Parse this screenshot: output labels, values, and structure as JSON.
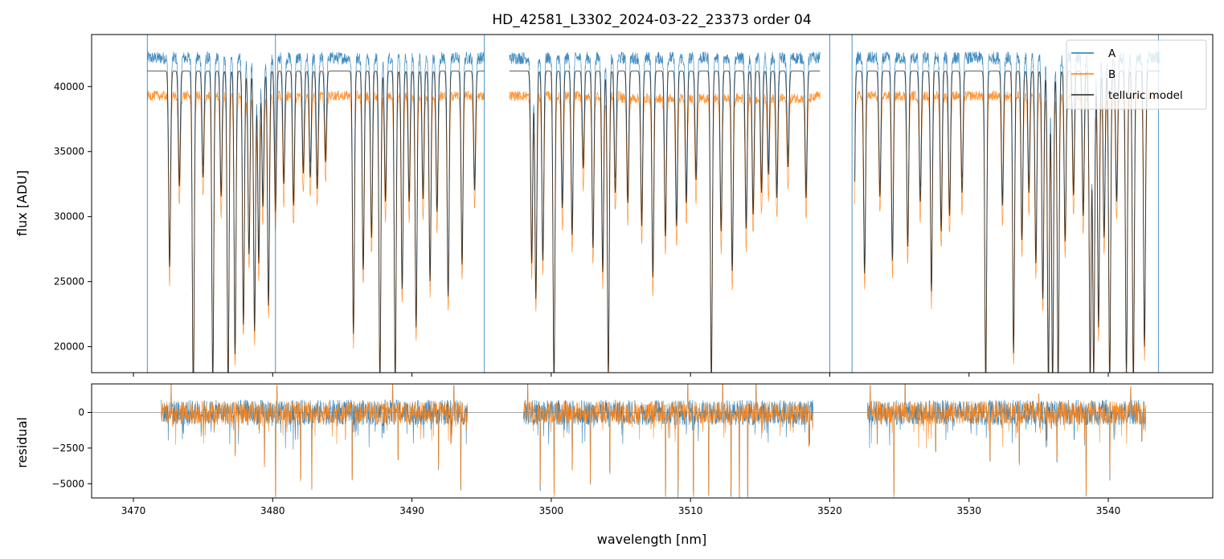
{
  "chart_data": [
    {
      "type": "line",
      "panel": "top",
      "title": "HD_42581_L3302_2024-03-22_23373  order 04",
      "ylabel": "flux [ADU]",
      "xlabel": "",
      "xlim": [
        3467.0,
        3547.5
      ],
      "ylim": [
        18000,
        44000
      ],
      "xticks": [
        3470,
        3480,
        3490,
        3500,
        3510,
        3520,
        3530,
        3540
      ],
      "xtick_labels_visible": false,
      "yticks": [
        20000,
        25000,
        30000,
        35000,
        40000
      ],
      "ytick_labels": [
        "20000",
        "25000",
        "30000",
        "35000",
        "40000"
      ],
      "legend": {
        "position": "top-right",
        "entries": [
          "A",
          "B",
          "telluric model"
        ]
      },
      "continuum_ranges": [
        [
          3471,
          3495.2
        ],
        [
          3497.0,
          3519.3
        ],
        [
          3521.8,
          3543.7
        ]
      ],
      "series": [
        {
          "name": "A",
          "color": "#1f77b4",
          "continuum": 42200,
          "x_range": [
            3471.0,
            3543.7
          ]
        },
        {
          "name": "B",
          "color": "#ff7f0e",
          "continuum": 39300,
          "x_range": [
            3471.0,
            3543.7
          ]
        },
        {
          "name": "telluric model",
          "color": "#222222",
          "continuum": 41200,
          "x_range": [
            3471.0,
            3543.7
          ]
        }
      ],
      "absorption_lines": [
        [
          3472.6,
          26500
        ],
        [
          3473.3,
          32800
        ],
        [
          3474.3,
          16000
        ],
        [
          3475.0,
          33500
        ],
        [
          3475.7,
          17500
        ],
        [
          3476.3,
          32000
        ],
        [
          3476.8,
          17200
        ],
        [
          3477.3,
          19700
        ],
        [
          3477.9,
          22000
        ],
        [
          3478.3,
          27500
        ],
        [
          3478.7,
          21500
        ],
        [
          3479.0,
          26800
        ],
        [
          3479.3,
          31200
        ],
        [
          3479.7,
          23500
        ],
        [
          3480.2,
          30800
        ],
        [
          3480.8,
          33000
        ],
        [
          3481.5,
          31300
        ],
        [
          3482.2,
          33800
        ],
        [
          3482.7,
          33500
        ],
        [
          3483.2,
          32600
        ],
        [
          3483.8,
          34700
        ],
        [
          3485.8,
          21300
        ],
        [
          3486.5,
          26300
        ],
        [
          3487.1,
          28800
        ],
        [
          3487.7,
          17500
        ],
        [
          3488.1,
          31600
        ],
        [
          3488.8,
          17500
        ],
        [
          3489.3,
          24800
        ],
        [
          3489.8,
          31600
        ],
        [
          3490.3,
          21800
        ],
        [
          3490.8,
          31800
        ],
        [
          3491.3,
          25400
        ],
        [
          3491.8,
          30800
        ],
        [
          3492.6,
          24200
        ],
        [
          3493.6,
          26700
        ],
        [
          3494.5,
          32500
        ],
        [
          3498.6,
          26800
        ],
        [
          3498.9,
          24000
        ],
        [
          3499.4,
          27000
        ],
        [
          3500.2,
          17500
        ],
        [
          3500.8,
          31100
        ],
        [
          3501.5,
          29000
        ],
        [
          3502.3,
          34200
        ],
        [
          3503.0,
          28000
        ],
        [
          3503.7,
          26100
        ],
        [
          3504.1,
          18000
        ],
        [
          3504.6,
          32300
        ],
        [
          3505.5,
          31500
        ],
        [
          3506.5,
          29700
        ],
        [
          3507.3,
          25700
        ],
        [
          3508.2,
          28900
        ],
        [
          3509.0,
          29700
        ],
        [
          3509.7,
          31500
        ],
        [
          3510.4,
          33300
        ],
        [
          3511.5,
          17500
        ],
        [
          3512.2,
          29300
        ],
        [
          3513.0,
          26200
        ],
        [
          3514.0,
          29500
        ],
        [
          3514.5,
          30600
        ],
        [
          3515.1,
          32300
        ],
        [
          3515.6,
          33700
        ],
        [
          3516.2,
          31900
        ],
        [
          3517.0,
          34300
        ],
        [
          3518.3,
          31900
        ],
        [
          3520.0,
          17800
        ],
        [
          3521.7,
          17800
        ],
        [
          3522.5,
          26000
        ],
        [
          3523.6,
          32000
        ],
        [
          3524.5,
          27000
        ],
        [
          3525.6,
          28100
        ],
        [
          3526.5,
          31600
        ],
        [
          3527.3,
          24600
        ],
        [
          3528.0,
          29300
        ],
        [
          3528.6,
          30500
        ],
        [
          3529.5,
          32300
        ],
        [
          3531.2,
          17500
        ],
        [
          3532.4,
          31300
        ],
        [
          3533.2,
          19800
        ],
        [
          3533.8,
          28600
        ],
        [
          3534.3,
          32300
        ],
        [
          3534.8,
          26800
        ],
        [
          3535.3,
          24000
        ],
        [
          3535.7,
          17500
        ],
        [
          3536.0,
          17500
        ],
        [
          3536.4,
          17500
        ],
        [
          3536.9,
          28500
        ],
        [
          3537.5,
          32100
        ],
        [
          3538.2,
          30500
        ],
        [
          3538.7,
          17500
        ],
        [
          3538.95,
          18000
        ],
        [
          3539.3,
          21800
        ],
        [
          3539.7,
          28800
        ],
        [
          3540.1,
          17500
        ],
        [
          3540.6,
          31600
        ],
        [
          3541.3,
          18200
        ],
        [
          3541.8,
          17500
        ],
        [
          3542.6,
          20300
        ]
      ],
      "spikes": [
        [
          3471.0,
          44000
        ],
        [
          3480.2,
          44000
        ],
        [
          3495.2,
          44000
        ],
        [
          3520.0,
          44000
        ],
        [
          3521.6,
          44000
        ],
        [
          3543.6,
          44000
        ]
      ]
    },
    {
      "type": "line",
      "panel": "bottom",
      "title": "",
      "ylabel": "residual",
      "xlabel": "wavelength [nm]",
      "xlim": [
        3467.0,
        3547.5
      ],
      "ylim": [
        -6000,
        2000
      ],
      "xticks": [
        3470,
        3480,
        3490,
        3500,
        3510,
        3520,
        3530,
        3540
      ],
      "xtick_labels": [
        "3470",
        "3480",
        "3490",
        "3500",
        "3510",
        "3520",
        "3530",
        "3540"
      ],
      "yticks": [
        -5000,
        -2500,
        0
      ],
      "ytick_labels": [
        "−5000",
        "−2500",
        "0"
      ],
      "reference_line": 0,
      "residual_ranges": [
        [
          3472.0,
          3494.0
        ],
        [
          3498.0,
          3518.8
        ],
        [
          3522.7,
          3542.7
        ]
      ],
      "series": [
        {
          "name": "A",
          "color": "#1f77b4"
        },
        {
          "name": "B",
          "color": "#ff7f0e"
        }
      ],
      "notable_dips": [
        [
          3477.3,
          -3100
        ],
        [
          3479.4,
          -3900
        ],
        [
          3480.2,
          -6000
        ],
        [
          3482.0,
          -4900
        ],
        [
          3482.8,
          -5500
        ],
        [
          3485.7,
          -4800
        ],
        [
          3489.0,
          -3500
        ],
        [
          3491.9,
          -4100
        ],
        [
          3493.5,
          -5600
        ],
        [
          3499.2,
          -5600
        ],
        [
          3500.2,
          -6000
        ],
        [
          3501.5,
          -4200
        ],
        [
          3502.8,
          -5100
        ],
        [
          3504.2,
          -4400
        ],
        [
          3508.2,
          -6000
        ],
        [
          3509.1,
          -6000
        ],
        [
          3510.2,
          -6000
        ],
        [
          3511.3,
          -6000
        ],
        [
          3512.9,
          -6000
        ],
        [
          3513.5,
          -6000
        ],
        [
          3514.1,
          -6000
        ],
        [
          3518.5,
          -2500
        ],
        [
          3523.4,
          -2300
        ],
        [
          3524.6,
          -6000
        ],
        [
          3527.6,
          -2900
        ],
        [
          3531.5,
          -3500
        ],
        [
          3533.6,
          -3800
        ],
        [
          3536.3,
          -3600
        ],
        [
          3538.4,
          -5900
        ],
        [
          3540.1,
          -4800
        ],
        [
          3542.4,
          -2100
        ]
      ],
      "notable_peaks": [
        [
          3472.7,
          2000
        ],
        [
          3480.3,
          1900
        ],
        [
          3488.6,
          2000
        ],
        [
          3493.0,
          1900
        ],
        [
          3498.3,
          2000
        ],
        [
          3509.8,
          2000
        ],
        [
          3512.3,
          2000
        ],
        [
          3514.7,
          2000
        ],
        [
          3522.9,
          1900
        ],
        [
          3525.4,
          2000
        ],
        [
          3535.0,
          1300
        ],
        [
          3541.6,
          1800
        ]
      ]
    }
  ]
}
